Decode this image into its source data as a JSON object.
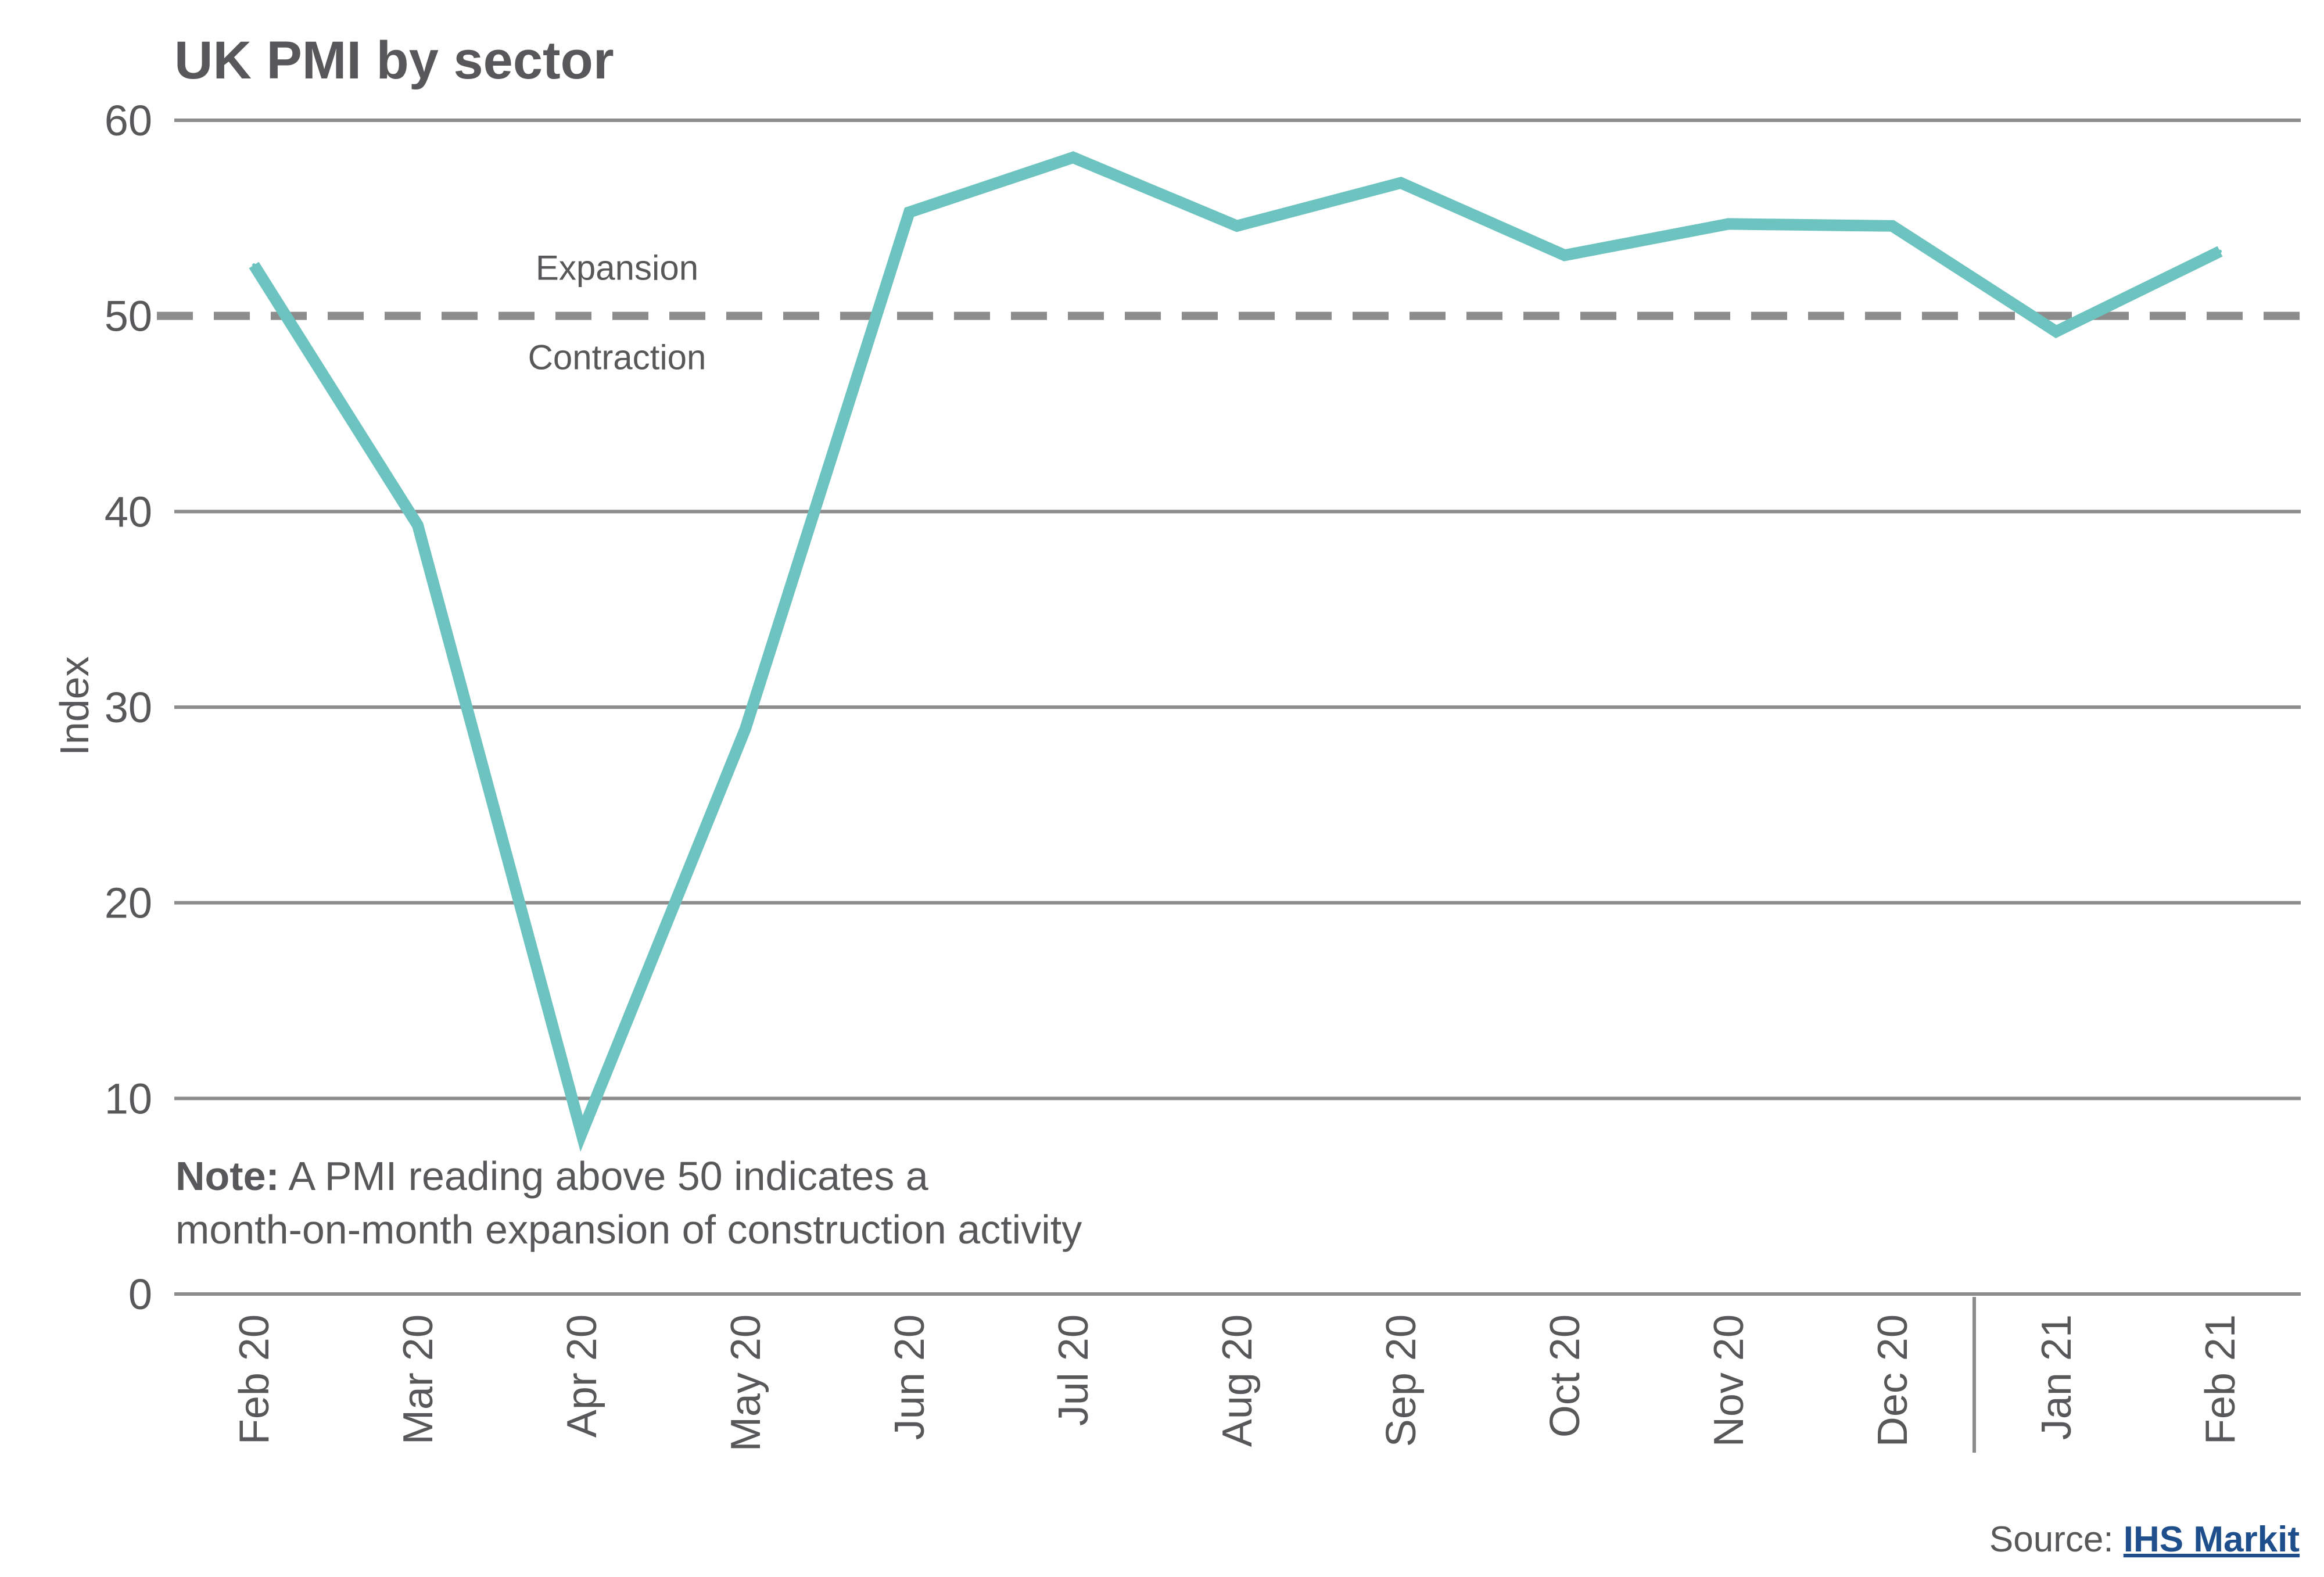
{
  "chart_data": {
    "type": "line",
    "title": "UK PMI by sector",
    "xlabel": "",
    "ylabel": "Index",
    "ylim": [
      0,
      60
    ],
    "yticks": [
      0,
      10,
      20,
      30,
      40,
      50,
      60
    ],
    "grid": true,
    "categories": [
      "Feb 20",
      "Mar 20",
      "Apr 20",
      "May 20",
      "Jun 20",
      "Jul 20",
      "Aug 20",
      "Sep 20",
      "Oct 20",
      "Nov 20",
      "Dec 20",
      "Jan 21",
      "Feb 21"
    ],
    "series": [
      {
        "values": [
          52.6,
          39.3,
          8.2,
          28.9,
          55.3,
          58.1,
          54.6,
          56.8,
          53.1,
          54.7,
          54.6,
          49.2,
          53.3
        ],
        "color": "#6cc3bf"
      }
    ],
    "reference_line": {
      "value": 50,
      "style": "dashed",
      "color": "#8c8c8c"
    },
    "annotations": {
      "above_reference": "Expansion",
      "below_reference": "Contraction"
    },
    "year_divider_after": "Dec 20"
  },
  "note": {
    "bold": "Note:",
    "line1": " A PMI reading above 50 indicates a",
    "line2": "month-on-month expansion of construction activity"
  },
  "source": {
    "prefix": "Source: ",
    "link_text": "IHS Markit"
  },
  "colors": {
    "line": "#6cc3bf",
    "grid": "#8c8c8c",
    "text": "#58585a",
    "link": "#1f4e8c"
  }
}
